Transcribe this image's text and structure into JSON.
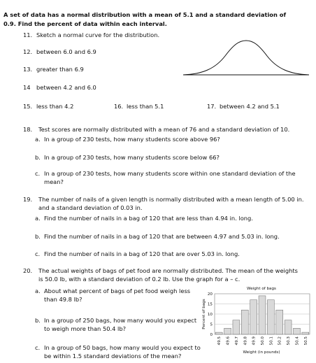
{
  "intro": [
    "A set of data has a normal distribution with a mean of 5.1 and a standard deviation of",
    "0.9.  Find the percent of data within each interval."
  ],
  "q11": {
    "number": "11.",
    "text": "Sketch a normal curve for the distribution."
  },
  "q12": {
    "number": "12.",
    "text": "between 6.0 and 6.9"
  },
  "q13": {
    "number": "13.",
    "text": "greater than 6.9"
  },
  "q14": {
    "number": "14",
    "text": "between 4.2 and 6.0"
  },
  "q15": {
    "number": "15.",
    "text": "less than 4.2"
  },
  "q16": {
    "number": "16.",
    "text": "less than 5.1"
  },
  "q17": {
    "number": "17.",
    "text": "between 4.2 and 5.1"
  },
  "q18": {
    "number": "18.",
    "text": [
      "Test scores are normally distributed with a mean of 76 and a standard deviation of 10."
    ],
    "parts": [
      {
        "letter": "a.",
        "text": [
          "In a group of 230 tests, how many students score above 96?"
        ]
      },
      {
        "letter": "b.",
        "text": [
          "In a group of 230 tests, how many students score below 66?"
        ]
      },
      {
        "letter": "c.",
        "text": [
          "In a group of 230 tests, how many students score within one standard deviation of the",
          "mean?"
        ]
      }
    ]
  },
  "q19": {
    "number": "19.",
    "text": [
      "The number of nails of a given length is normally distributed with a mean length of 5.00 in.",
      "and a standard deviation of 0.03 in."
    ],
    "parts": [
      {
        "letter": "a.",
        "text": [
          "Find the number of nails in a bag of 120 that are less than 4.94 in. long."
        ]
      },
      {
        "letter": "b.",
        "text": [
          "Find the number of nails in a bag of 120 that are between 4.97 and 5.03 in. long."
        ]
      },
      {
        "letter": "c.",
        "text": [
          "Find the number of nails in a bag of 120 that are over 5.03 in. long."
        ]
      }
    ]
  },
  "q20": {
    "number": "20.",
    "text": [
      "The actual weights of bags of pet food are normally distributed. The mean of the weights",
      "is 50.0 lb, with a standard deviation of 0.2 lb. Use the graph for a – c."
    ],
    "parts": [
      {
        "letter": "a.",
        "text": [
          "About what percent of bags of pet food weigh less",
          "than 49.8 lb?"
        ]
      },
      {
        "letter": "b.",
        "text": [
          "In a group of 250 bags, how many would you expect",
          "to weigh more than 50.4 lb?"
        ]
      },
      {
        "letter": "c.",
        "text": [
          "In a group of 50 bags, how many would you expect to",
          "be within 1.5 standard deviations of the mean?"
        ]
      }
    ]
  },
  "histogram": {
    "type": "bar",
    "title": "Weight of bags",
    "x_label": "Weight (in pounds)",
    "y_label": "Percent of bags",
    "categories": [
      "49.5",
      "49.6",
      "49.7",
      "49.8",
      "49.9",
      "50.0",
      "50.1",
      "50.2",
      "50.3",
      "50.4",
      "50.5"
    ],
    "values": [
      1,
      3,
      7,
      12,
      17,
      19,
      17,
      12,
      7,
      3,
      1
    ],
    "ylim": [
      0,
      20
    ],
    "yticks": [
      0,
      5,
      10,
      15,
      20
    ],
    "grid": true,
    "color": "#d9d9d9"
  }
}
